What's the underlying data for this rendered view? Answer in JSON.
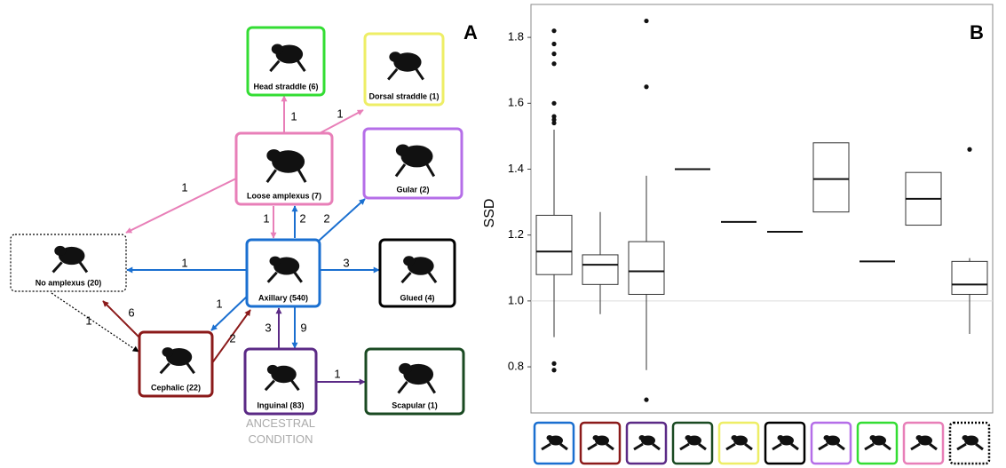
{
  "panel_a": {
    "label": "A",
    "annotation": "ANCESTRAL CONDITION",
    "nodes": [
      {
        "label": "Head straddle (6)",
        "color": "#33dd33"
      },
      {
        "label": "Dorsal straddle (1)",
        "color": "#eeee66"
      },
      {
        "label": "Loose amplexus (7)",
        "color": "#e87fb8"
      },
      {
        "label": "Gular (2)",
        "color": "#b56ee8"
      },
      {
        "label": "No amplexus (20)",
        "color": "#000000",
        "dotted": true
      },
      {
        "label": "Axillary (540)",
        "color": "#1a6fd0"
      },
      {
        "label": "Glued (4)",
        "color": "#000000"
      },
      {
        "label": "Cephalic (22)",
        "color": "#8b1a1a"
      },
      {
        "label": "Inguinal (83)",
        "color": "#5b2a86"
      },
      {
        "label": "Scapular (1)",
        "color": "#1a4a22"
      }
    ],
    "edges": [
      {
        "label": 1,
        "color": "#e87fb8"
      },
      {
        "label": 1,
        "color": "#e87fb8"
      },
      {
        "label": 1,
        "color": "#e87fb8"
      },
      {
        "label": 1,
        "color": "#e87fb8"
      },
      {
        "label": 2,
        "color": "#1a6fd0"
      },
      {
        "label": 2,
        "color": "#1a6fd0"
      },
      {
        "label": 1,
        "color": "#1a6fd0"
      },
      {
        "label": 3,
        "color": "#1a6fd0"
      },
      {
        "label": 1,
        "color": "#1a6fd0"
      },
      {
        "label": 9,
        "color": "#1a6fd0"
      },
      {
        "label": 3,
        "color": "#5b2a86"
      },
      {
        "label": 1,
        "color": "#5b2a86"
      },
      {
        "label": 6,
        "color": "#8b1a1a"
      },
      {
        "label": 2,
        "color": "#8b1a1a"
      },
      {
        "label": 1,
        "color": "#000000",
        "dotted": true
      }
    ]
  },
  "chart_data": {
    "type": "box",
    "panel_label": "B",
    "y_label": "SSD",
    "categories": [
      null,
      null,
      null,
      null,
      null,
      null,
      null,
      null,
      null,
      null
    ],
    "colors": [
      "#1a6fd0",
      "#8b1a1a",
      "#5b2a86",
      "#1a4a22",
      "#eeee66",
      "#000000",
      "#b56ee8",
      "#33dd33",
      "#e87fb8",
      "#000000"
    ],
    "boxes": [
      {
        "min": 0.89,
        "q1": 1.08,
        "median": 1.15,
        "q3": 1.26,
        "max": 1.52,
        "outliers": [
          1.82,
          1.78,
          1.75,
          1.72,
          1.6,
          1.56,
          1.55,
          1.54,
          0.81,
          0.79
        ]
      },
      {
        "min": 0.96,
        "q1": 1.05,
        "median": 1.11,
        "q3": 1.14,
        "max": 1.27,
        "outliers": []
      },
      {
        "min": 0.79,
        "q1": 1.02,
        "median": 1.09,
        "q3": 1.18,
        "max": 1.38,
        "outliers": [
          1.85,
          1.65,
          0.7
        ]
      },
      {
        "min": 1.4,
        "q1": 1.4,
        "median": 1.4,
        "q3": 1.4,
        "max": 1.4,
        "outliers": []
      },
      {
        "min": 1.24,
        "q1": 1.24,
        "median": 1.24,
        "q3": 1.24,
        "max": 1.24,
        "outliers": []
      },
      {
        "min": 1.21,
        "q1": 1.21,
        "median": 1.21,
        "q3": 1.21,
        "max": 1.21,
        "outliers": []
      },
      {
        "min": 1.27,
        "q1": 1.27,
        "median": 1.37,
        "q3": 1.48,
        "max": 1.48,
        "outliers": []
      },
      {
        "min": 1.12,
        "q1": 1.12,
        "median": 1.12,
        "q3": 1.12,
        "max": 1.12,
        "outliers": []
      },
      {
        "min": 1.23,
        "q1": 1.23,
        "median": 1.31,
        "q3": 1.39,
        "max": 1.39,
        "outliers": []
      },
      {
        "min": 0.9,
        "q1": 1.02,
        "median": 1.05,
        "q3": 1.12,
        "max": 1.13,
        "outliers": [
          1.46
        ]
      }
    ],
    "ylim": [
      0.66,
      1.9
    ],
    "yticks": [
      0.8,
      {
        "value": 1,
        "label": "1.0"
      },
      1.2,
      1.4,
      1.6,
      1.8
    ],
    "hline": 1
  }
}
